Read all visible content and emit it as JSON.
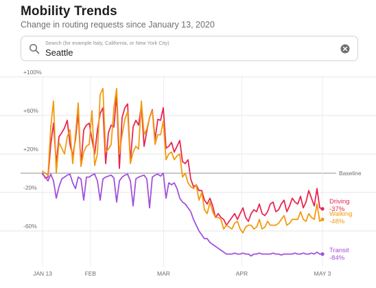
{
  "header": {
    "title": "Mobility Trends",
    "subtitle": "Change in routing requests since January 13, 2020"
  },
  "search": {
    "placeholder": "Search (for example Italy, California, or New York City)",
    "value": "Seattle",
    "search_icon": "search-icon",
    "clear_icon": "clear-icon"
  },
  "chart_data": {
    "type": "line",
    "title": "",
    "xlabel": "",
    "ylabel": "",
    "ylim": [
      -90,
      100
    ],
    "grid": true,
    "x_start": "2020-01-13",
    "x_end": "2020-05-03",
    "x_ticks": [
      "JAN 13",
      "FEB",
      "MAR",
      "APR",
      "MAY 3"
    ],
    "x_tick_dates": [
      "2020-01-13",
      "2020-02-01",
      "2020-03-01",
      "2020-04-01",
      "2020-05-03"
    ],
    "y_ticks": [
      {
        "value": 100,
        "label": "+100%"
      },
      {
        "value": 60,
        "label": "+60%"
      },
      {
        "value": 20,
        "label": "+20%"
      },
      {
        "value": -20,
        "label": "-20%"
      },
      {
        "value": -60,
        "label": "-60%"
      }
    ],
    "baseline": {
      "value": 0,
      "label": "Baseline"
    },
    "series": [
      {
        "name": "Driving",
        "end_label": "-37%",
        "color": "#e8254f",
        "values": [
          0,
          -5,
          -4,
          30,
          52,
          10,
          38,
          42,
          47,
          55,
          30,
          18,
          35,
          63,
          8,
          45,
          50,
          52,
          35,
          20,
          45,
          62,
          68,
          10,
          42,
          50,
          48,
          82,
          5,
          58,
          68,
          72,
          12,
          48,
          55,
          50,
          70,
          28,
          44,
          58,
          66,
          35,
          56,
          55,
          68,
          26,
          28,
          32,
          22,
          28,
          34,
          12,
          10,
          14,
          -6,
          -14,
          -12,
          -18,
          -18,
          -28,
          -32,
          -26,
          -34,
          -46,
          -42,
          -46,
          -48,
          -54,
          -50,
          -46,
          -42,
          -48,
          -42,
          -36,
          -46,
          -50,
          -42,
          -38,
          -40,
          -32,
          -42,
          -44,
          -40,
          -32,
          -30,
          -40,
          -38,
          -32,
          -28,
          -40,
          -34,
          -26,
          -30,
          -32,
          -24,
          -36,
          -30,
          -18,
          -26,
          -34,
          -16,
          -36,
          -37
        ]
      },
      {
        "name": "Walking",
        "end_label": "-48%",
        "color": "#f29a0e",
        "values": [
          2,
          0,
          -2,
          48,
          75,
          0,
          32,
          26,
          20,
          38,
          45,
          10,
          40,
          73,
          7,
          22,
          28,
          30,
          65,
          8,
          20,
          82,
          88,
          22,
          25,
          30,
          68,
          88,
          20,
          40,
          56,
          64,
          10,
          22,
          28,
          25,
          75,
          40,
          46,
          58,
          65,
          30,
          40,
          40,
          54,
          14,
          20,
          22,
          14,
          18,
          20,
          -4,
          0,
          -10,
          -14,
          -16,
          -12,
          -28,
          -20,
          -38,
          -42,
          -30,
          -40,
          -46,
          -46,
          -48,
          -58,
          -54,
          -56,
          -58,
          -52,
          -50,
          -58,
          -62,
          -56,
          -54,
          -54,
          -58,
          -56,
          -48,
          -58,
          -56,
          -50,
          -54,
          -54,
          -54,
          -52,
          -48,
          -44,
          -54,
          -52,
          -48,
          -48,
          -48,
          -40,
          -48,
          -50,
          -42,
          -46,
          -48,
          -32,
          -50,
          -48
        ]
      },
      {
        "name": "Transit",
        "end_label": "-84%",
        "color": "#a050dc",
        "values": [
          -1,
          -4,
          -8,
          -1,
          -8,
          -26,
          -14,
          -6,
          -4,
          -2,
          -1,
          -10,
          -16,
          -4,
          -6,
          -28,
          -4,
          -4,
          -2,
          -1,
          -8,
          -28,
          -6,
          -4,
          -3,
          -2,
          -5,
          -30,
          -8,
          -4,
          -2,
          -1,
          -8,
          -34,
          -6,
          -4,
          -3,
          -2,
          -6,
          -36,
          -4,
          -2,
          -1,
          -3,
          0,
          -26,
          -10,
          -12,
          -10,
          -16,
          -26,
          -30,
          -32,
          -36,
          -40,
          -48,
          -54,
          -60,
          -64,
          -68,
          -68,
          -72,
          -74,
          -76,
          -78,
          -80,
          -82,
          -84,
          -84,
          -84,
          -83,
          -84,
          -84,
          -83,
          -84,
          -84,
          -86,
          -84,
          -84,
          -83,
          -84,
          -84,
          -84,
          -84,
          -83,
          -84,
          -84,
          -85,
          -84,
          -84,
          -84,
          -84,
          -83,
          -84,
          -84,
          -83,
          -84,
          -84,
          -83,
          -84,
          -82,
          -84,
          -84
        ]
      }
    ]
  }
}
